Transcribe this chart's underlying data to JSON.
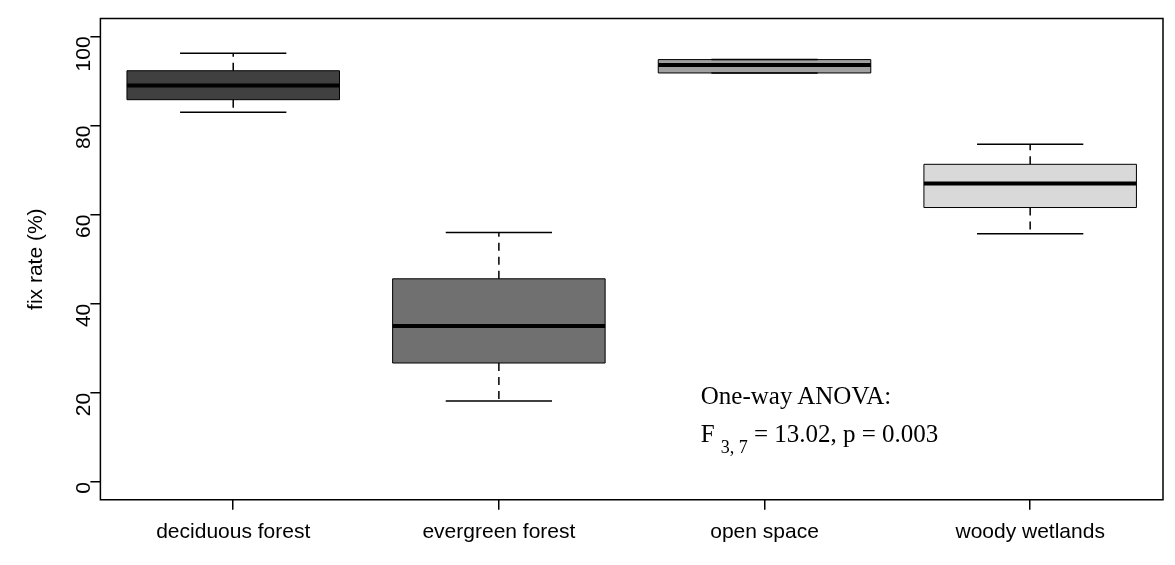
{
  "chart_data": {
    "type": "box",
    "ylabel": "fix rate (%)",
    "categories": [
      "deciduous forest",
      "evergreen forest",
      "open space",
      "woody wetlands"
    ],
    "colors": [
      "#404040",
      "#707070",
      "#a0a0a0",
      "#d9d9d9"
    ],
    "boxes": [
      {
        "low": 83,
        "q1": 85.8,
        "median": 89,
        "q3": 92.3,
        "high": 96.2
      },
      {
        "low": 18.2,
        "q1": 26.7,
        "median": 35,
        "q3": 45.6,
        "high": 56
      },
      {
        "low": 91.8,
        "q1": 91.8,
        "median": 93.6,
        "q3": 94.8,
        "high": 94.8
      },
      {
        "low": 55.7,
        "q1": 61.6,
        "median": 67,
        "q3": 71.3,
        "high": 75.8
      }
    ],
    "ylim": [
      -4,
      104
    ],
    "yticks": [
      0,
      20,
      40,
      60,
      80,
      100
    ],
    "grid": false,
    "legend": false,
    "annotations": [
      "One-way ANOVA:",
      "F$_{3, 7}$ = 13.02, p = 0.003"
    ]
  }
}
